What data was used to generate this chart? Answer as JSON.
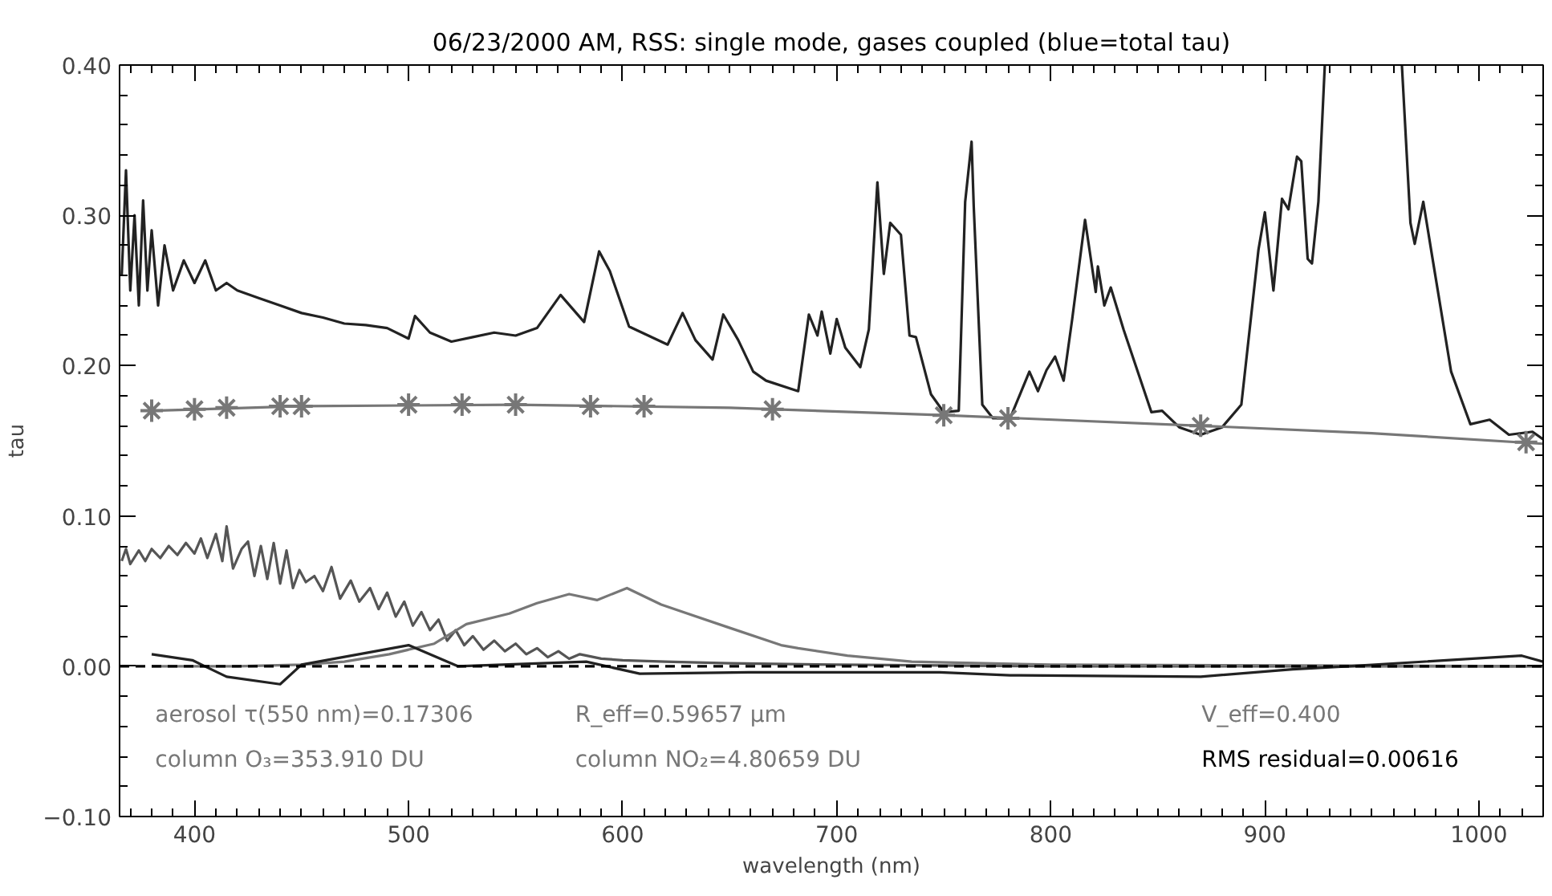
{
  "chart_data": {
    "type": "line",
    "title": "06/23/2000 AM, RSS: single mode, gases coupled (blue=total tau)",
    "xlabel": "wavelength (nm)",
    "ylabel": "tau",
    "xlim": [
      365,
      1030
    ],
    "ylim": [
      -0.1,
      0.4
    ],
    "xticks": [
      {
        "value": 370,
        "label": null
      },
      {
        "value": 380,
        "label": null
      },
      {
        "value": 390,
        "label": null
      },
      400,
      {
        "value": 410,
        "label": null
      },
      {
        "value": 420,
        "label": null
      },
      {
        "value": 430,
        "label": null
      },
      {
        "value": 440,
        "label": null
      },
      {
        "value": 450,
        "label": null
      },
      {
        "value": 460,
        "label": null
      },
      {
        "value": 470,
        "label": null
      },
      {
        "value": 480,
        "label": null
      },
      {
        "value": 490,
        "label": null
      },
      500,
      {
        "value": 510,
        "label": null
      },
      {
        "value": 520,
        "label": null
      },
      {
        "value": 530,
        "label": null
      },
      {
        "value": 540,
        "label": null
      },
      {
        "value": 550,
        "label": null
      },
      {
        "value": 560,
        "label": null
      },
      {
        "value": 570,
        "label": null
      },
      {
        "value": 580,
        "label": null
      },
      {
        "value": 590,
        "label": null
      },
      600,
      {
        "value": 610,
        "label": null
      },
      {
        "value": 620,
        "label": null
      },
      {
        "value": 630,
        "label": null
      },
      {
        "value": 640,
        "label": null
      },
      {
        "value": 650,
        "label": null
      },
      {
        "value": 660,
        "label": null
      },
      {
        "value": 670,
        "label": null
      },
      {
        "value": 680,
        "label": null
      },
      {
        "value": 690,
        "label": null
      },
      700,
      {
        "value": 710,
        "label": null
      },
      {
        "value": 720,
        "label": null
      },
      {
        "value": 730,
        "label": null
      },
      {
        "value": 740,
        "label": null
      },
      {
        "value": 750,
        "label": null
      },
      {
        "value": 760,
        "label": null
      },
      {
        "value": 770,
        "label": null
      },
      {
        "value": 780,
        "label": null
      },
      {
        "value": 790,
        "label": null
      },
      800,
      {
        "value": 810,
        "label": null
      },
      {
        "value": 820,
        "label": null
      },
      {
        "value": 830,
        "label": null
      },
      {
        "value": 840,
        "label": null
      },
      {
        "value": 850,
        "label": null
      },
      {
        "value": 860,
        "label": null
      },
      {
        "value": 870,
        "label": null
      },
      {
        "value": 880,
        "label": null
      },
      {
        "value": 890,
        "label": null
      },
      900,
      {
        "value": 910,
        "label": null
      },
      {
        "value": 920,
        "label": null
      },
      {
        "value": 930,
        "label": null
      },
      {
        "value": 940,
        "label": null
      },
      {
        "value": 950,
        "label": null
      },
      {
        "value": 960,
        "label": null
      },
      {
        "value": 970,
        "label": null
      },
      {
        "value": 980,
        "label": null
      },
      {
        "value": 990,
        "label": null
      },
      1000,
      {
        "value": 1010,
        "label": null
      },
      {
        "value": 1020,
        "label": null
      }
    ],
    "yticks": [
      {
        "value": -0.1,
        "label": "−0.10"
      },
      {
        "value": -0.08,
        "label": null
      },
      {
        "value": -0.06,
        "label": null
      },
      {
        "value": -0.04,
        "label": null
      },
      {
        "value": -0.02,
        "label": null
      },
      {
        "value": 0,
        "label": "0.00"
      },
      {
        "value": 0.02,
        "label": null
      },
      {
        "value": 0.04,
        "label": null
      },
      {
        "value": 0.06,
        "label": null
      },
      {
        "value": 0.08,
        "label": null
      },
      {
        "value": 0.1,
        "label": "0.10"
      },
      {
        "value": 0.12,
        "label": null
      },
      {
        "value": 0.14,
        "label": null
      },
      {
        "value": 0.16,
        "label": null
      },
      {
        "value": 0.18,
        "label": null
      },
      {
        "value": 0.2,
        "label": "0.20"
      },
      {
        "value": 0.22,
        "label": null
      },
      {
        "value": 0.24,
        "label": null
      },
      {
        "value": 0.26,
        "label": null
      },
      {
        "value": 0.28,
        "label": null
      },
      {
        "value": 0.3,
        "label": "0.30"
      },
      {
        "value": 0.32,
        "label": null
      },
      {
        "value": 0.34,
        "label": null
      },
      {
        "value": 0.36,
        "label": null
      },
      {
        "value": 0.38,
        "label": null
      },
      {
        "value": 0.4,
        "label": "0.40"
      }
    ],
    "grid": false,
    "series": [
      {
        "type": "line",
        "color": "#222222",
        "x": [
          366,
          368,
          370,
          372,
          374,
          376,
          378,
          380,
          383,
          386,
          390,
          395,
          400,
          405,
          410,
          415,
          420,
          430,
          440,
          450,
          460,
          470,
          480,
          490,
          500,
          503,
          510,
          520,
          530,
          540,
          550,
          560,
          571,
          582,
          589,
          594,
          603,
          621,
          628,
          634,
          642,
          647,
          654,
          661,
          667,
          682,
          687,
          691,
          693,
          697,
          700,
          704,
          711,
          715,
          719,
          722,
          725,
          730,
          734,
          737,
          744,
          750,
          757,
          760,
          763,
          764,
          768,
          773,
          781,
          790,
          794,
          798,
          802,
          806,
          810,
          816,
          821,
          822,
          825,
          828,
          834,
          847,
          852,
          860,
          870,
          880,
          889,
          897,
          900,
          904,
          908,
          911,
          915,
          917,
          920,
          922,
          925,
          928,
          940,
          964,
          968,
          970,
          974,
          978,
          987,
          996,
          1005,
          1014,
          1025,
          1030
        ],
        "values": [
          0.26,
          0.33,
          0.25,
          0.3,
          0.24,
          0.31,
          0.25,
          0.29,
          0.24,
          0.28,
          0.25,
          0.27,
          0.255,
          0.27,
          0.25,
          0.255,
          0.25,
          0.245,
          0.24,
          0.235,
          0.232,
          0.228,
          0.227,
          0.225,
          0.218,
          0.233,
          0.222,
          0.216,
          0.219,
          0.222,
          0.22,
          0.225,
          0.247,
          0.229,
          0.276,
          0.263,
          0.226,
          0.214,
          0.235,
          0.217,
          0.204,
          0.234,
          0.217,
          0.196,
          0.19,
          0.183,
          0.234,
          0.22,
          0.236,
          0.208,
          0.231,
          0.212,
          0.199,
          0.224,
          0.322,
          0.261,
          0.295,
          0.287,
          0.22,
          0.219,
          0.181,
          0.169,
          0.17,
          0.309,
          0.349,
          0.306,
          0.174,
          0.165,
          0.165,
          0.196,
          0.183,
          0.197,
          0.206,
          0.19,
          0.231,
          0.297,
          0.249,
          0.266,
          0.24,
          0.252,
          0.224,
          0.169,
          0.17,
          0.159,
          0.154,
          0.159,
          0.174,
          0.277,
          0.302,
          0.25,
          0.311,
          0.304,
          0.339,
          0.336,
          0.271,
          0.268,
          0.309,
          0.4,
          null,
          0.4,
          0.295,
          0.281,
          0.309,
          0.274,
          0.196,
          0.161,
          0.164,
          0.154,
          0.156,
          0.151
        ]
      },
      {
        "type": "line",
        "color": "#777777",
        "x": [
          380,
          450,
          550,
          650,
          750,
          870,
          950,
          1030
        ],
        "values": [
          0.17,
          0.173,
          0.174,
          0.172,
          0.167,
          0.16,
          0.155,
          0.148
        ]
      },
      {
        "type": "scatter",
        "marker": "cross",
        "color": "#777777",
        "x": [
          380,
          400,
          415,
          440,
          450,
          500,
          525,
          550,
          585,
          610,
          670,
          750,
          780,
          870,
          1022
        ],
        "values": [
          0.17,
          0.171,
          0.172,
          0.173,
          0.173,
          0.174,
          0.174,
          0.174,
          0.173,
          0.173,
          0.171,
          0.167,
          0.165,
          0.16,
          0.149
        ]
      },
      {
        "type": "line",
        "color": "#555555",
        "x": [
          366,
          368,
          370,
          374,
          377,
          380,
          384,
          388,
          392,
          396,
          400,
          403,
          406,
          410,
          413,
          415,
          418,
          422,
          425,
          428,
          431,
          434,
          437,
          440,
          443,
          446,
          449,
          452,
          456,
          460,
          464,
          468,
          473,
          477,
          482,
          486,
          490,
          494,
          498,
          502,
          506,
          510,
          514,
          518,
          522,
          526,
          530,
          535,
          540,
          545,
          550,
          555,
          560,
          565,
          570,
          575,
          580,
          590,
          600,
          620,
          650,
          700,
          800,
          900,
          1030
        ],
        "values": [
          0.07,
          0.078,
          0.068,
          0.077,
          0.07,
          0.078,
          0.072,
          0.08,
          0.074,
          0.082,
          0.075,
          0.085,
          0.072,
          0.088,
          0.07,
          0.093,
          0.065,
          0.078,
          0.083,
          0.06,
          0.08,
          0.058,
          0.082,
          0.055,
          0.077,
          0.052,
          0.064,
          0.056,
          0.06,
          0.05,
          0.066,
          0.045,
          0.057,
          0.043,
          0.052,
          0.038,
          0.049,
          0.033,
          0.043,
          0.027,
          0.036,
          0.024,
          0.031,
          0.017,
          0.024,
          0.014,
          0.02,
          0.011,
          0.017,
          0.01,
          0.015,
          0.008,
          0.012,
          0.006,
          0.01,
          0.005,
          0.008,
          0.005,
          0.004,
          0.003,
          0.002,
          0.001,
          0.0,
          0.0,
          0.0
        ]
      },
      {
        "type": "line",
        "color": "#777777",
        "x": [
          380,
          420,
          450,
          470,
          491,
          512,
          527,
          547,
          560,
          575,
          588,
          602,
          618,
          649,
          674,
          682,
          705,
          735,
          800,
          1030
        ],
        "values": [
          0.0,
          0.0,
          0.001,
          0.003,
          0.008,
          0.015,
          0.028,
          0.035,
          0.042,
          0.048,
          0.044,
          0.052,
          0.041,
          0.026,
          0.014,
          0.012,
          0.007,
          0.003,
          0.001,
          0.0
        ]
      },
      {
        "type": "line",
        "color": "#222222",
        "x": [
          380,
          399,
          415,
          440,
          450,
          500,
          523,
          583,
          608,
          659,
          748,
          781,
          870,
          913,
          939,
          1020,
          1030
        ],
        "values": [
          0.008,
          0.004,
          -0.007,
          -0.012,
          0.001,
          0.014,
          0.0,
          0.003,
          -0.005,
          -0.004,
          -0.004,
          -0.006,
          -0.007,
          -0.002,
          0.0,
          0.007,
          0.003
        ]
      }
    ],
    "ref_lines": [
      {
        "axis": "y",
        "value": 0,
        "color": "#000000",
        "line_style": "dashed"
      }
    ],
    "annotations": [
      "aerosol τ(550 nm)=0.17306",
      "R_eff=0.59657 μm",
      "V_eff=0.400",
      "column O₃=353.910 DU",
      "column NO₂=4.80659 DU",
      "RMS residual=0.00616"
    ]
  }
}
